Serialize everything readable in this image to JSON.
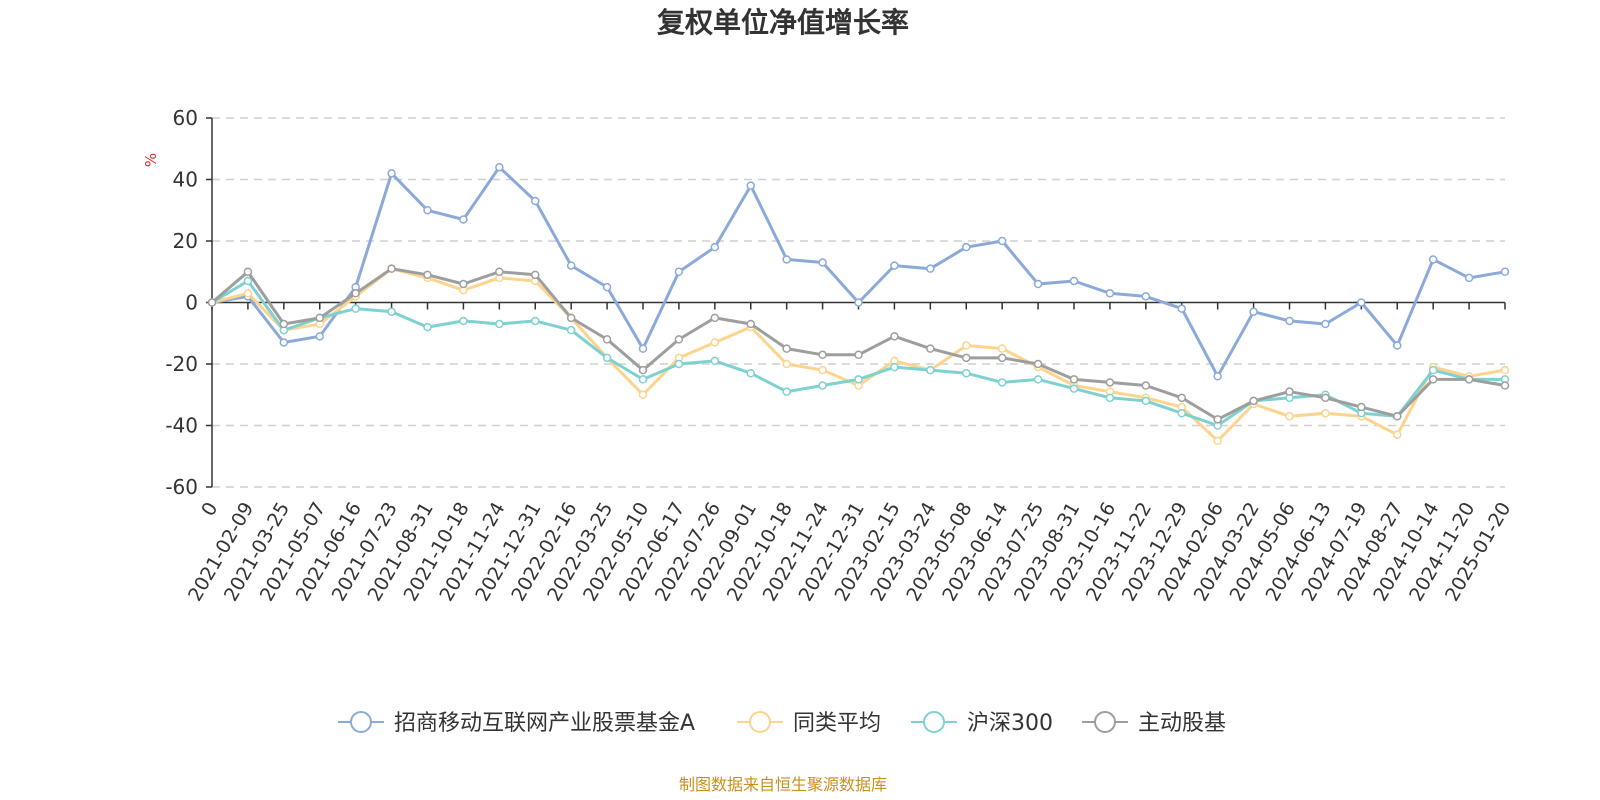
{
  "chart_data": {
    "type": "line",
    "title": "复权单位净值增长率",
    "ylabel": "%",
    "xlabel": "",
    "ylim": [
      -60,
      60
    ],
    "yticks": [
      60,
      40,
      20,
      0,
      -20,
      -40,
      -60
    ],
    "x_tick_labels": [
      "0",
      "2021-02-09",
      "2021-03-25",
      "2021-05-07",
      "2021-06-16",
      "2021-07-23",
      "2021-08-31",
      "2021-10-18",
      "2021-11-24",
      "2021-12-31",
      "2022-02-16",
      "2022-03-25",
      "2022-05-10",
      "2022-06-17",
      "2022-07-26",
      "2022-09-01",
      "2022-10-18",
      "2022-11-24",
      "2022-12-31",
      "2023-02-15",
      "2023-03-24",
      "2023-05-08",
      "2023-06-14",
      "2023-07-25",
      "2023-08-31",
      "2023-10-16",
      "2023-11-22",
      "2023-12-29",
      "2024-02-06",
      "2024-03-22",
      "2024-05-06",
      "2024-06-13",
      "2024-07-19",
      "2024-08-27",
      "2024-10-14",
      "2024-11-20",
      "2025-01-20"
    ],
    "x": [
      "0",
      "2021-02-09",
      "2021-03-25",
      "2021-05-07",
      "2021-06-16",
      "2021-07-23",
      "2021-08-31",
      "2021-10-18",
      "2021-11-24",
      "2021-12-31",
      "2022-02-16",
      "2022-03-25",
      "2022-05-10",
      "2022-06-17",
      "2022-07-26",
      "2022-09-01",
      "2022-10-18",
      "2022-11-24",
      "2022-12-31",
      "2023-02-15",
      "2023-03-24",
      "2023-05-08",
      "2023-06-14",
      "2023-07-25",
      "2023-08-31",
      "2023-10-16",
      "2023-11-22",
      "2023-12-29",
      "2024-02-06",
      "2024-03-22",
      "2024-05-06",
      "2024-06-13",
      "2024-07-19",
      "2024-08-27",
      "2024-10-14",
      "2024-11-20",
      "2025-01-20"
    ],
    "series": [
      {
        "name": "招商移动互联网产业股票基金A",
        "color": "#8ba9d9",
        "values": [
          0,
          2,
          -13,
          -11,
          5,
          42,
          30,
          27,
          44,
          33,
          12,
          5,
          -15,
          10,
          18,
          38,
          14,
          13,
          0,
          12,
          11,
          18,
          20,
          6,
          7,
          3,
          2,
          -2,
          -24,
          -3,
          -6,
          -7,
          0,
          -14,
          14,
          8,
          10
        ]
      },
      {
        "name": "同类平均",
        "color": "#fcd48d",
        "values": [
          0,
          3,
          -9,
          -7,
          2,
          11,
          8,
          4,
          8,
          7,
          -5,
          -18,
          -30,
          -18,
          -13,
          -8,
          -20,
          -22,
          -27,
          -19,
          -22,
          -14,
          -15,
          -21,
          -27,
          -29,
          -31,
          -34,
          -45,
          -33,
          -37,
          -36,
          -37,
          -43,
          -21,
          -24,
          -22
        ]
      },
      {
        "name": "沪深300",
        "color": "#7dd1d1",
        "values": [
          0,
          7,
          -9,
          -5,
          -2,
          -3,
          -8,
          -6,
          -7,
          -6,
          -9,
          -18,
          -25,
          -20,
          -19,
          -23,
          -29,
          -27,
          -25,
          -21,
          -22,
          -23,
          -26,
          -25,
          -28,
          -31,
          -32,
          -36,
          -40,
          -32,
          -31,
          -30,
          -36,
          -37,
          -22,
          -25,
          -25
        ]
      },
      {
        "name": "主动股基",
        "color": "#9e9e9e",
        "values": [
          0,
          10,
          -7,
          -5,
          3,
          11,
          9,
          6,
          10,
          9,
          -5,
          -12,
          -22,
          -12,
          -5,
          -7,
          -15,
          -17,
          -17,
          -11,
          -15,
          -18,
          -18,
          -20,
          -25,
          -26,
          -27,
          -31,
          -38,
          -32,
          -29,
          -31,
          -34,
          -37,
          -25,
          -25,
          -27
        ]
      }
    ],
    "legend_position": "bottom",
    "grid": true,
    "source_note": "制图数据来自恒生聚源数据库"
  }
}
